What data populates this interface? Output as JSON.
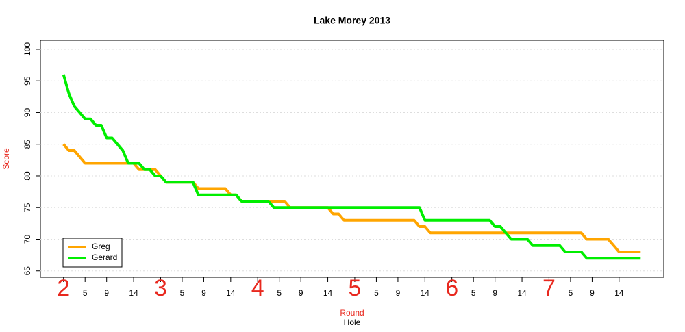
{
  "chart_data": {
    "type": "line",
    "title": "Lake Morey 2013",
    "xlabel_round": "Round",
    "xlabel": "Hole",
    "ylabel": "Score",
    "x": [
      1,
      2,
      3,
      4,
      5,
      6,
      7,
      8,
      9,
      10,
      11,
      12,
      13,
      14,
      15,
      16,
      17,
      18,
      19,
      20,
      21,
      22,
      23,
      24,
      25,
      26,
      27,
      28,
      29,
      30,
      31,
      32,
      33,
      34,
      35,
      36,
      37,
      38,
      39,
      40,
      41,
      42,
      43,
      44,
      45,
      46,
      47,
      48,
      49,
      50,
      51,
      52,
      53,
      54,
      55,
      56,
      57,
      58,
      59,
      60,
      61,
      62,
      63,
      64,
      65,
      66,
      67,
      68,
      69,
      70,
      71,
      72,
      73,
      74,
      75,
      76,
      77,
      78,
      79,
      80,
      81,
      82,
      83,
      84,
      85,
      86,
      87,
      88,
      89,
      90,
      91,
      92,
      93,
      94,
      95,
      96,
      97,
      98,
      99,
      100,
      101,
      102,
      103,
      104,
      105,
      106,
      107,
      108
    ],
    "series": [
      {
        "name": "Greg",
        "color": "#ffa500",
        "values": [
          85,
          84,
          84,
          83,
          82,
          82,
          82,
          82,
          82,
          82,
          82,
          82,
          82,
          82,
          81,
          81,
          81,
          81,
          80,
          79,
          79,
          79,
          79,
          79,
          79,
          78,
          78,
          78,
          78,
          78,
          78,
          77,
          77,
          76,
          76,
          76,
          76,
          76,
          76,
          76,
          76,
          76,
          75,
          75,
          75,
          75,
          75,
          75,
          75,
          75,
          74,
          74,
          73,
          73,
          73,
          73,
          73,
          73,
          73,
          73,
          73,
          73,
          73,
          73,
          73,
          73,
          72,
          72,
          71,
          71,
          71,
          71,
          71,
          71,
          71,
          71,
          71,
          71,
          71,
          71,
          71,
          71,
          71,
          71,
          71,
          71,
          71,
          71,
          71,
          71,
          71,
          71,
          71,
          71,
          71,
          71,
          71,
          70,
          70,
          70,
          70,
          70,
          69,
          68,
          68,
          68,
          68,
          68
        ]
      },
      {
        "name": "Gerard",
        "color": "#00ee00",
        "values": [
          96,
          93,
          91,
          90,
          89,
          89,
          88,
          88,
          86,
          86,
          85,
          84,
          82,
          82,
          82,
          81,
          81,
          80,
          80,
          79,
          79,
          79,
          79,
          79,
          79,
          77,
          77,
          77,
          77,
          77,
          77,
          77,
          77,
          76,
          76,
          76,
          76,
          76,
          76,
          75,
          75,
          75,
          75,
          75,
          75,
          75,
          75,
          75,
          75,
          75,
          75,
          75,
          75,
          75,
          75,
          75,
          75,
          75,
          75,
          75,
          75,
          75,
          75,
          75,
          75,
          75,
          75,
          73,
          73,
          73,
          73,
          73,
          73,
          73,
          73,
          73,
          73,
          73,
          73,
          73,
          72,
          72,
          71,
          70,
          70,
          70,
          70,
          69,
          69,
          69,
          69,
          69,
          69,
          68,
          68,
          68,
          68,
          67,
          67,
          67,
          67,
          67,
          67,
          67,
          67,
          67,
          67,
          67
        ]
      }
    ],
    "xlim": [
      -3.28,
      112.28
    ],
    "round_ticks": [
      {
        "value": 1,
        "label": "2"
      },
      {
        "value": 19,
        "label": "3"
      },
      {
        "value": 37,
        "label": "4"
      },
      {
        "value": 55,
        "label": "5"
      },
      {
        "value": 73,
        "label": "6"
      },
      {
        "value": 91,
        "label": "7"
      }
    ],
    "xticks": [
      5,
      9,
      14,
      {
        "value": 23,
        "label": "5"
      },
      {
        "value": 27,
        "label": "9"
      },
      {
        "value": 32,
        "label": "14"
      },
      {
        "value": 41,
        "label": "5"
      },
      {
        "value": 45,
        "label": "9"
      },
      {
        "value": 50,
        "label": "14"
      },
      {
        "value": 59,
        "label": "5"
      },
      {
        "value": 63,
        "label": "9"
      },
      {
        "value": 68,
        "label": "14"
      },
      {
        "value": 77,
        "label": "5"
      },
      {
        "value": 81,
        "label": "9"
      },
      {
        "value": 86,
        "label": "14"
      },
      {
        "value": 95,
        "label": "5"
      },
      {
        "value": 99,
        "label": "9"
      },
      {
        "value": 104,
        "label": "14"
      }
    ],
    "ylim": [
      64,
      101.4
    ],
    "yticks": [
      65,
      70,
      75,
      80,
      85,
      90,
      95,
      100
    ],
    "grid": true,
    "legend": "bottom-left"
  }
}
